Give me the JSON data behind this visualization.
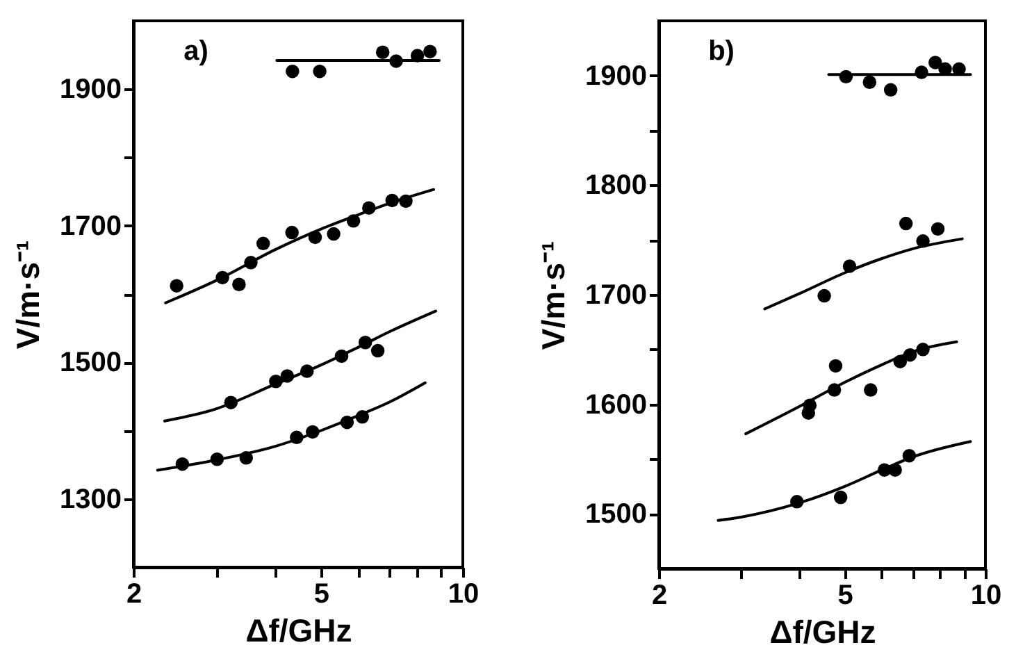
{
  "chart_data": [
    {
      "type": "scatter",
      "annotations": [
        "a)"
      ],
      "xlabel": "Δf/GHz",
      "ylabel": "V/m·s⁻¹",
      "log": "x",
      "xlim": [
        2,
        10
      ],
      "xticks": [
        2,
        {
          "value": 3,
          "label": null
        },
        {
          "value": 4,
          "label": null
        },
        5,
        {
          "value": 6,
          "label": null
        },
        {
          "value": 7,
          "label": null
        },
        {
          "value": 8,
          "label": null
        },
        {
          "value": 9,
          "label": null
        },
        10
      ],
      "ylim": [
        1200,
        2000
      ],
      "yticks": [
        1300,
        {
          "value": 1400,
          "label": null
        },
        1500,
        {
          "value": 1600,
          "label": null
        },
        1700,
        {
          "value": 1800,
          "label": null
        },
        1900
      ],
      "grid": false,
      "series": [
        {
          "marker": "circle",
          "color": "#000000",
          "x": [
            4.35,
            4.97,
            6.76,
            7.22,
            8.01,
            8.52
          ],
          "values": [
            1926,
            1926,
            1954,
            1941,
            1949,
            1955
          ]
        },
        {
          "type": "line",
          "color": "#000000",
          "x": [
            4.03,
            5,
            6,
            7,
            8,
            8.91
          ],
          "values": [
            1942,
            1942,
            1942,
            1942,
            1942,
            1942
          ]
        },
        {
          "marker": "circle",
          "color": "#000000",
          "x": [
            2.47,
            3.09,
            3.35,
            3.55,
            3.77,
            4.34,
            4.86,
            5.32,
            5.86,
            6.32,
            7.08,
            7.57
          ],
          "values": [
            1612,
            1624,
            1614,
            1646,
            1674,
            1690,
            1683,
            1688,
            1707,
            1726,
            1737,
            1736
          ]
        },
        {
          "type": "line",
          "color": "#000000",
          "x": [
            2.34,
            3,
            4,
            5,
            6,
            7,
            8.67
          ],
          "values": [
            1587,
            1620,
            1665,
            1695,
            1716,
            1733,
            1753
          ]
        },
        {
          "marker": "circle",
          "color": "#000000",
          "x": [
            3.22,
            4.01,
            4.24,
            4.67,
            5.53,
            6.21,
            6.6
          ],
          "values": [
            1441,
            1472,
            1480,
            1487,
            1509,
            1529,
            1517
          ]
        },
        {
          "type": "line",
          "color": "#000000",
          "x": [
            2.33,
            3,
            4,
            5,
            6,
            7,
            8.76
          ],
          "values": [
            1414,
            1432,
            1468,
            1496,
            1522,
            1545,
            1575
          ]
        },
        {
          "marker": "circle",
          "color": "#000000",
          "x": [
            2.54,
            3.01,
            3.47,
            4.44,
            4.8,
            5.68,
            6.12
          ],
          "values": [
            1351,
            1358,
            1360,
            1390,
            1398,
            1412,
            1420
          ]
        },
        {
          "type": "line",
          "color": "#000000",
          "x": [
            2.25,
            3,
            4,
            5,
            6,
            7,
            8.32
          ],
          "values": [
            1342,
            1357,
            1377,
            1400,
            1422,
            1442,
            1470
          ]
        }
      ]
    },
    {
      "type": "scatter",
      "annotations": [
        "b)"
      ],
      "xlabel": "Δf/GHz",
      "ylabel": "V/m·s⁻¹",
      "log": "x",
      "xlim": [
        2,
        10
      ],
      "xticks": [
        2,
        {
          "value": 3,
          "label": null
        },
        {
          "value": 4,
          "label": null
        },
        5,
        {
          "value": 6,
          "label": null
        },
        {
          "value": 7,
          "label": null
        },
        {
          "value": 8,
          "label": null
        },
        {
          "value": 9,
          "label": null
        },
        10
      ],
      "ylim": [
        1450,
        1950
      ],
      "yticks": [
        1500,
        {
          "value": 1550,
          "label": null
        },
        1600,
        {
          "value": 1650,
          "label": null
        },
        1700,
        {
          "value": 1750,
          "label": null
        },
        1800,
        {
          "value": 1850,
          "label": null
        },
        1900
      ],
      "grid": false,
      "series": [
        {
          "marker": "circle",
          "color": "#000000",
          "x": [
            5.03,
            5.65,
            6.27,
            7.3,
            7.81,
            8.2,
            8.78
          ],
          "values": [
            1899,
            1894,
            1887,
            1903,
            1912,
            1906,
            1906
          ]
        },
        {
          "type": "line",
          "color": "#000000",
          "x": [
            4.62,
            5,
            6,
            7,
            8,
            9.29
          ],
          "values": [
            1901,
            1901,
            1901,
            1901,
            1901,
            1901
          ]
        },
        {
          "marker": "circle",
          "color": "#000000",
          "x": [
            4.52,
            5.12,
            6.76,
            7.35,
            7.91
          ],
          "values": [
            1699,
            1726,
            1765,
            1749,
            1760
          ]
        },
        {
          "type": "line",
          "color": "#000000",
          "x": [
            3.37,
            4,
            5,
            6,
            7,
            8.92
          ],
          "values": [
            1687,
            1701,
            1720,
            1733,
            1742,
            1751
          ]
        },
        {
          "marker": "circle",
          "color": "#000000",
          "x": [
            4.21,
            4.18,
            4.78,
            4.75,
            5.68,
            6.57,
            6.9,
            7.35
          ],
          "values": [
            1599,
            1592,
            1635,
            1613,
            1613,
            1639,
            1645,
            1650
          ]
        },
        {
          "type": "line",
          "color": "#000000",
          "x": [
            3.07,
            4,
            5,
            6,
            7,
            8.68
          ],
          "values": [
            1573,
            1598,
            1620,
            1636,
            1648,
            1657
          ]
        },
        {
          "marker": "circle",
          "color": "#000000",
          "x": [
            3.95,
            4.9,
            6.08,
            6.41,
            6.87
          ],
          "values": [
            1511,
            1515,
            1540,
            1540,
            1553
          ]
        },
        {
          "type": "line",
          "color": "#000000",
          "x": [
            2.68,
            3,
            4,
            5,
            6,
            7,
            9.29
          ],
          "values": [
            1494,
            1497,
            1510,
            1525,
            1540,
            1552,
            1566
          ]
        }
      ]
    }
  ]
}
